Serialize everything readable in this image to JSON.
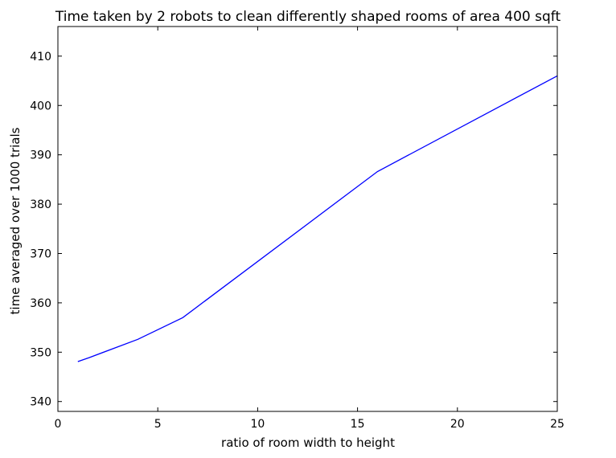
{
  "chart_data": {
    "type": "line",
    "title": "Time taken by 2 robots to clean differently shaped rooms of area 400 sqft",
    "xlabel": "ratio of room width to height",
    "ylabel": "time averaged over 1000 trials",
    "xlim": [
      0,
      25
    ],
    "ylim": [
      338,
      416
    ],
    "xticks": [
      0,
      5,
      10,
      15,
      20,
      25
    ],
    "yticks": [
      340,
      350,
      360,
      370,
      380,
      390,
      400,
      410
    ],
    "grid": false,
    "legend": "none",
    "series": [
      {
        "color": "#0000ff",
        "x": [
          1,
          1.56,
          4,
          6.25,
          16,
          25
        ],
        "y": [
          348.1,
          348.9,
          352.6,
          357.0,
          386.6,
          406.0
        ]
      }
    ]
  }
}
